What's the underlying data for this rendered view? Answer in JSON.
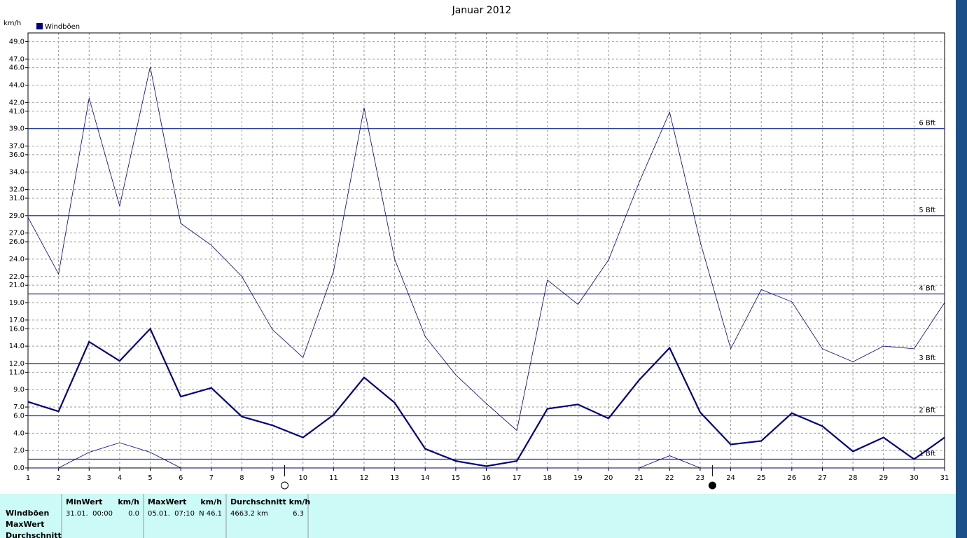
{
  "chart_data": {
    "type": "line",
    "title": "Januar 2012",
    "y_label": "km/h",
    "x": [
      1,
      2,
      3,
      4,
      5,
      6,
      7,
      8,
      9,
      10,
      11,
      12,
      13,
      14,
      15,
      16,
      17,
      18,
      19,
      20,
      21,
      22,
      23,
      24,
      25,
      26,
      27,
      28,
      29,
      30,
      31
    ],
    "series": [
      {
        "name": "Windböen",
        "color": "#000080",
        "width": 2.2,
        "values": [
          7.6,
          6.5,
          14.5,
          12.3,
          16.0,
          8.2,
          9.2,
          5.9,
          4.9,
          3.5,
          6.1,
          10.4,
          7.5,
          2.2,
          0.8,
          0.2,
          0.8,
          6.8,
          7.3,
          5.7,
          10.1,
          13.8,
          6.4,
          2.7,
          3.1,
          6.3,
          4.8,
          1.9,
          3.5,
          1.0,
          3.5
        ]
      },
      {
        "color": "#000080",
        "width": 0.8,
        "values": [
          28.8,
          22.3,
          42.5,
          30.1,
          46.1,
          28.1,
          25.6,
          22.0,
          15.9,
          12.7,
          22.6,
          41.4,
          24.0,
          15.1,
          10.7,
          7.4,
          4.3,
          21.6,
          18.8,
          23.9,
          32.8,
          40.9,
          26.0,
          13.7,
          20.5,
          19.1,
          13.7,
          12.2,
          14.0,
          13.7,
          19.0
        ]
      },
      {
        "color": "#000080",
        "width": 0.8,
        "values": [
          0,
          0,
          1.8,
          2.9,
          1.8,
          0,
          0,
          0,
          0,
          0,
          0,
          0,
          0,
          0,
          0,
          0,
          0,
          0,
          0,
          0,
          0,
          1.4,
          0,
          0,
          0,
          0,
          0,
          0,
          0,
          0,
          0
        ]
      }
    ],
    "xlim": [
      1,
      31
    ],
    "ylim": [
      0,
      50
    ],
    "xticks": [
      1,
      2,
      3,
      4,
      5,
      6,
      7,
      8,
      9,
      10,
      11,
      12,
      13,
      14,
      15,
      16,
      17,
      18,
      19,
      20,
      21,
      22,
      23,
      24,
      25,
      26,
      27,
      28,
      29,
      30,
      31
    ],
    "yticks": [
      {
        "value": 0,
        "label": "0.0"
      },
      {
        "value": 2,
        "label": "2.0"
      },
      {
        "value": 4,
        "label": "4.0"
      },
      {
        "value": 6,
        "label": "6.0"
      },
      {
        "value": 7,
        "label": "7.0"
      },
      {
        "value": 9,
        "label": "9.0"
      },
      {
        "value": 11,
        "label": "11.0"
      },
      {
        "value": 12,
        "label": "12.0"
      },
      {
        "value": 14,
        "label": "14.0"
      },
      {
        "value": 16,
        "label": "16.0"
      },
      {
        "value": 17,
        "label": "17.0"
      },
      {
        "value": 19,
        "label": "19.0"
      },
      {
        "value": 21,
        "label": "21.0"
      },
      {
        "value": 22,
        "label": "22.0"
      },
      {
        "value": 24,
        "label": "24.0"
      },
      {
        "value": 26,
        "label": "26.0"
      },
      {
        "value": 27,
        "label": "27.0"
      },
      {
        "value": 29,
        "label": "29.0"
      },
      {
        "value": 31,
        "label": "31.0"
      },
      {
        "value": 32,
        "label": "32.0"
      },
      {
        "value": 34,
        "label": "34.0"
      },
      {
        "value": 36,
        "label": "36.0"
      },
      {
        "value": 37,
        "label": "37.0"
      },
      {
        "value": 39,
        "label": "39.0"
      },
      {
        "value": 41,
        "label": "41.0"
      },
      {
        "value": 42,
        "label": "42.0"
      },
      {
        "value": 44,
        "label": "44.0"
      },
      {
        "value": 46,
        "label": "46.0"
      },
      {
        "value": 47,
        "label": "47.0"
      },
      {
        "value": 49,
        "label": "49.0"
      }
    ],
    "grid": true,
    "bft_lines": [
      {
        "value": 1,
        "label": "1 Bft"
      },
      {
        "value": 6,
        "label": "2 Bft"
      },
      {
        "value": 12,
        "label": "3 Bft"
      },
      {
        "value": 20,
        "label": "4 Bft"
      },
      {
        "value": 29,
        "label": "5 Bft"
      },
      {
        "value": 39,
        "label": "6 Bft"
      }
    ],
    "full_moon_x": 9.4,
    "new_moon_x": 23.4
  },
  "summary": {
    "row_labels": [
      "Windböen",
      "MaxWert",
      "Durchschnitt"
    ],
    "columns": [
      {
        "header": [
          "MinWert",
          "km/h"
        ],
        "cells": [
          "31.01.  00:00",
          "0.0"
        ]
      },
      {
        "header": [
          "MaxWert",
          "km/h"
        ],
        "cells": [
          "05.01.  07:10",
          "N 46.1"
        ]
      },
      {
        "header": [
          "Durchschnitt km/h"
        ],
        "cells": [
          "4663.2 km",
          "6.3"
        ]
      }
    ]
  }
}
